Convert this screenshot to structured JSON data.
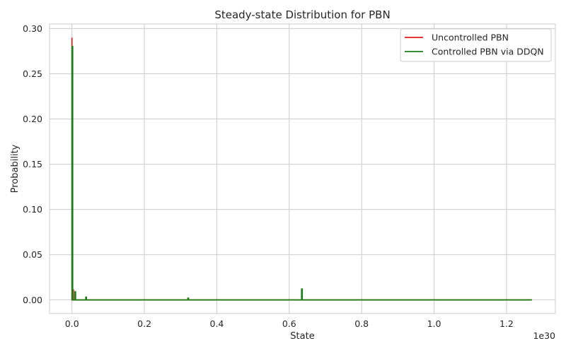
{
  "chart_data": {
    "type": "line",
    "title": "Steady-state Distribution for PBN",
    "xlabel": "State",
    "ylabel": "Probability",
    "x_exponent_label": "1e30",
    "xlim": [
      -0.062,
      1.335
    ],
    "ylim": [
      -0.015,
      0.305
    ],
    "xticks": [
      0.0,
      0.2,
      0.4,
      0.6,
      0.8,
      1.0,
      1.2
    ],
    "xtick_labels": [
      "0.0",
      "0.2",
      "0.4",
      "0.6",
      "0.8",
      "1.0",
      "1.2"
    ],
    "yticks": [
      0.0,
      0.05,
      0.1,
      0.15,
      0.2,
      0.25,
      0.3
    ],
    "ytick_labels": [
      "0.00",
      "0.05",
      "0.10",
      "0.15",
      "0.20",
      "0.25",
      "0.30"
    ],
    "grid": true,
    "legend_position": "top-right",
    "series": [
      {
        "name": "Uncontrolled PBN",
        "color": "#e41a1c",
        "x": [
          0.0,
          0.0,
          0.0,
          0.002,
          0.002,
          0.004,
          0.004,
          1.27
        ],
        "y": [
          0.0,
          0.29,
          0.0,
          0.0,
          0.011,
          0.011,
          0.0,
          0.0
        ]
      },
      {
        "name": "Controlled PBN via DDQN",
        "color": "#1a7f1a",
        "x": [
          0.0,
          0.0,
          0.002,
          0.002,
          0.008,
          0.008,
          0.01,
          0.01,
          0.038,
          0.038,
          0.04,
          0.04,
          0.32,
          0.32,
          0.322,
          0.322,
          0.634,
          0.634,
          0.636,
          0.636,
          1.27
        ],
        "y": [
          0.0,
          0.28,
          0.28,
          0.0,
          0.0,
          0.009,
          0.009,
          0.0,
          0.0,
          0.003,
          0.003,
          0.0,
          0.0,
          0.002,
          0.002,
          0.0,
          0.0,
          0.012,
          0.012,
          0.0,
          0.0
        ]
      }
    ]
  }
}
